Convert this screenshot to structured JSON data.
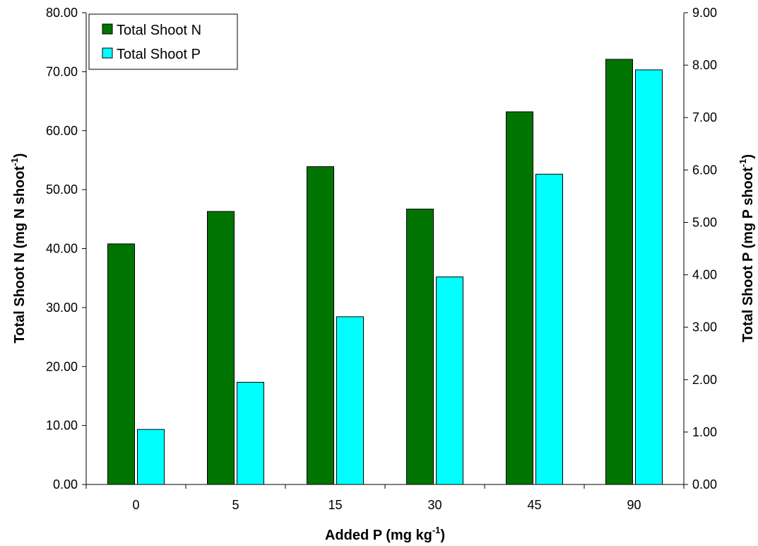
{
  "chart_data": {
    "type": "bar",
    "categories": [
      "0",
      "5",
      "15",
      "30",
      "45",
      "90"
    ],
    "series": [
      {
        "name": "Total Shoot N",
        "axis": "left",
        "color": "#007400",
        "values": [
          40.8,
          46.3,
          53.9,
          46.7,
          63.2,
          72.1
        ]
      },
      {
        "name": "Total Shoot P",
        "axis": "right",
        "color": "#00FFFF",
        "values": [
          1.05,
          1.95,
          3.2,
          3.96,
          5.92,
          7.91
        ]
      }
    ],
    "xlabel": {
      "main": "Added P (mg kg",
      "sup": "-1",
      "close": ")"
    },
    "ylabel_left": {
      "main": "Total Shoot N (mg N shoot",
      "sup": "-1",
      "close": ")"
    },
    "ylabel_right": {
      "main": "Total Shoot P (mg P shoot",
      "sup": "-1",
      "close": ")"
    },
    "ylim_left": [
      0,
      80
    ],
    "ylim_right": [
      0,
      9
    ],
    "yticks_left": [
      "0.00",
      "10.00",
      "20.00",
      "30.00",
      "40.00",
      "50.00",
      "60.00",
      "70.00",
      "80.00"
    ],
    "yticks_right": [
      "0.00",
      "1.00",
      "2.00",
      "3.00",
      "4.00",
      "5.00",
      "6.00",
      "7.00",
      "8.00",
      "9.00"
    ],
    "grid": false,
    "legend_position": "top-left"
  }
}
